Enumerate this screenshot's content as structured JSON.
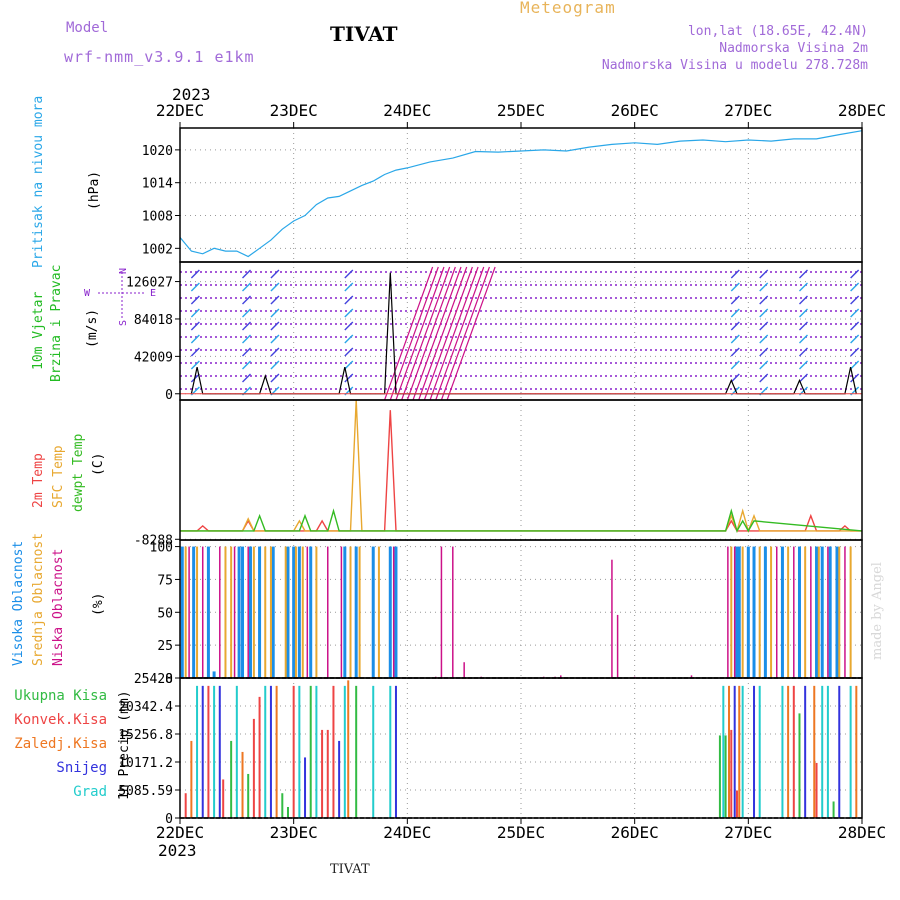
{
  "header": {
    "title": "TIVAT",
    "meteogram": "Meteogram",
    "model_label": "Model",
    "model_name": "wrf-nmm_v3.9.1 e1km",
    "lonlat": "lon,lat (18.65E, 42.4N)",
    "elevation": "Nadmorska Visina 2m",
    "model_elevation": "Nadmorska Visina u modelu 278.728m"
  },
  "footer": {
    "station": "TIVAT",
    "credit": "made by Angel"
  },
  "colors": {
    "pressure": "#2aa7e8",
    "wind_label": "#22bb22",
    "temp2m": "#ee4444",
    "sfc_temp": "#e8a830",
    "dewpt": "#33bb22",
    "high_cloud": "#1a8ee8",
    "mid_cloud": "#e8a830",
    "low_cloud": "#cc1188",
    "rain_total": "#33bb44",
    "rain_conv": "#ee4444",
    "rain_frz": "#ee7722",
    "snow": "#3333dd",
    "hail": "#22cccc",
    "wind_dots": "#8822cc",
    "wind_barb_a": "#2aa7e8",
    "wind_barb_b": "#cc1188"
  },
  "chart_data": [
    {
      "type": "line",
      "panel": "pressure",
      "title": "",
      "year": "2023",
      "x_ticks": [
        "22DEC",
        "23DEC",
        "24DEC",
        "25DEC",
        "26DEC",
        "27DEC",
        "28DEC"
      ],
      "ylabel": "Pritisak na nivou mora",
      "unit": "(hPa)",
      "y_ticks": [
        "1002",
        "1008",
        "1014",
        "1020"
      ],
      "ylim": [
        999.5,
        1024
      ],
      "grid": true,
      "series": [
        {
          "name": "Pritisak na nivou mora",
          "x": [
            0,
            0.1,
            0.2,
            0.3,
            0.4,
            0.5,
            0.6,
            0.7,
            0.8,
            0.9,
            1.0,
            1.1,
            1.2,
            1.3,
            1.4,
            1.5,
            1.6,
            1.7,
            1.8,
            1.9,
            2.0,
            2.2,
            2.4,
            2.6,
            2.8,
            3.0,
            3.2,
            3.4,
            3.6,
            3.8,
            4.0,
            4.2,
            4.4,
            4.6,
            4.8,
            5.0,
            5.2,
            5.4,
            5.6,
            5.8,
            6.0
          ],
          "values": [
            1004,
            1001.5,
            1001,
            1002,
            1001.5,
            1001.5,
            1000.5,
            1002,
            1003.5,
            1005.5,
            1007,
            1008,
            1010,
            1011.2,
            1011.5,
            1012.5,
            1013.5,
            1014.3,
            1015.5,
            1016.3,
            1016.7,
            1017.8,
            1018.5,
            1019.7,
            1019.6,
            1019.8,
            1020,
            1019.8,
            1020.5,
            1021,
            1021.3,
            1021,
            1021.6,
            1021.8,
            1021.5,
            1021.8,
            1021.6,
            1022,
            1022,
            1022.8,
            1023.5
          ]
        }
      ]
    },
    {
      "type": "line",
      "panel": "wind",
      "title": "",
      "ylabel": "10m Vjetar Brzina i Pravac",
      "unit": "(m/s)",
      "y_ticks": [
        "0",
        "42009",
        "84018",
        "126027"
      ],
      "ylim": [
        -7000,
        148000
      ],
      "grid": true,
      "compass": [
        "N",
        "W",
        "E",
        "S"
      ],
      "series": [
        {
          "name": "10m Vjetar Brzina",
          "x": [
            0.1,
            0.15,
            0.2,
            0.25,
            0.7,
            0.75,
            0.8,
            0.85,
            1.4,
            1.45,
            1.5,
            1.55,
            1.8,
            1.85,
            1.9,
            1.95,
            4.8,
            4.85,
            4.9,
            4.95,
            5.4,
            5.45,
            5.5,
            5.55,
            5.85,
            5.9,
            5.95
          ],
          "values": [
            0,
            30000,
            0,
            0,
            0,
            20000,
            0,
            0,
            0,
            30000,
            0,
            0,
            0,
            136000,
            0,
            0,
            0,
            15000,
            0,
            0,
            0,
            15000,
            0,
            0,
            0,
            30000,
            0
          ]
        }
      ]
    },
    {
      "type": "line",
      "panel": "temperature",
      "title": "",
      "ylabel": "2m Temp, SFC Temp, dewpt Temp",
      "unit": "(C)",
      "y_ticks": [
        "-8288"
      ],
      "ylim": [
        -9000,
        130000
      ],
      "grid": true,
      "series": [
        {
          "name": "2m Temp",
          "x": [
            0,
            0.15,
            0.2,
            0.25,
            0.55,
            0.6,
            0.65,
            0.7,
            1.2,
            1.25,
            1.3,
            1.35,
            1.8,
            1.85,
            1.9,
            1.95,
            4.8,
            4.85,
            4.9,
            4.95,
            5.5,
            5.55,
            5.6,
            5.8,
            5.85,
            5.9,
            6.0
          ],
          "values": [
            0,
            0,
            5000,
            0,
            0,
            10000,
            0,
            0,
            0,
            10000,
            0,
            0,
            0,
            120000,
            0,
            0,
            0,
            10000,
            0,
            0,
            0,
            15000,
            0,
            0,
            5000,
            0,
            0
          ]
        },
        {
          "name": "SFC Temp",
          "x": [
            0,
            0.55,
            0.6,
            0.65,
            1.0,
            1.05,
            1.1,
            1.5,
            1.55,
            1.6,
            4.8,
            4.85,
            4.9,
            4.95,
            5.0,
            5.05,
            5.1,
            6.0
          ],
          "values": [
            0,
            0,
            12000,
            0,
            0,
            10000,
            0,
            0,
            130000,
            0,
            0,
            15000,
            0,
            20000,
            0,
            15000,
            0,
            0
          ]
        },
        {
          "name": "dewpt Temp",
          "x": [
            0,
            0.65,
            0.7,
            0.75,
            1.05,
            1.1,
            1.15,
            1.2,
            1.3,
            1.35,
            1.4,
            1.45,
            4.8,
            4.85,
            4.9,
            4.95,
            5.0,
            5.05,
            6.0
          ],
          "values": [
            0,
            0,
            15000,
            0,
            0,
            15000,
            0,
            0,
            0,
            20000,
            0,
            0,
            0,
            20000,
            0,
            10000,
            0,
            10000,
            0
          ]
        }
      ]
    },
    {
      "type": "bar",
      "panel": "cloud",
      "title": "",
      "ylabel": "Visoka Oblacnost, Srednja Oblacnost, Niska Oblacnost",
      "unit": "(%)",
      "y_ticks": [
        "0",
        "25",
        "50",
        "75",
        "100"
      ],
      "ylim": [
        0,
        105
      ],
      "grid": true,
      "series": [
        {
          "name": "Visoka Oblacnost",
          "x": [
            0.02,
            0.12,
            0.25,
            0.3,
            0.52,
            0.55,
            0.62,
            0.7,
            0.82,
            0.95,
            1.0,
            1.05,
            1.15,
            1.45,
            1.55,
            1.7,
            1.85,
            1.9,
            4.9,
            4.92,
            5.0,
            5.05,
            5.15,
            5.3,
            5.45,
            5.6,
            5.65,
            5.72,
            5.78
          ],
          "values": [
            100,
            100,
            100,
            5,
            100,
            100,
            100,
            100,
            100,
            100,
            100,
            100,
            100,
            100,
            100,
            100,
            100,
            100,
            100,
            100,
            100,
            100,
            100,
            100,
            100,
            100,
            100,
            100,
            100
          ]
        },
        {
          "name": "Srednja Oblacnost",
          "x": [
            0.05,
            0.15,
            0.4,
            0.45,
            0.65,
            0.75,
            0.8,
            0.93,
            1.02,
            1.08,
            1.2,
            1.5,
            1.58,
            1.75,
            4.85,
            4.95,
            5.1,
            5.2,
            5.35,
            5.5,
            5.62,
            5.8,
            5.9
          ],
          "values": [
            100,
            100,
            100,
            100,
            100,
            100,
            100,
            100,
            100,
            100,
            100,
            100,
            100,
            100,
            100,
            100,
            100,
            100,
            100,
            100,
            100,
            100,
            100
          ]
        },
        {
          "name": "Niska Oblacnost",
          "x": [
            0.08,
            0.2,
            0.35,
            0.48,
            0.6,
            1.12,
            1.3,
            1.42,
            1.88,
            2.25,
            2.3,
            2.4,
            2.5,
            2.65,
            3.2,
            3.3,
            3.35,
            3.8,
            3.85,
            4.0,
            4.5,
            4.82,
            4.88,
            5.25,
            5.4,
            5.55,
            5.7,
            5.85
          ],
          "values": [
            100,
            100,
            100,
            100,
            100,
            100,
            100,
            100,
            100,
            1,
            100,
            100,
            12,
            1,
            1,
            1,
            2,
            90,
            48,
            1,
            2,
            100,
            100,
            100,
            100,
            100,
            100,
            100
          ]
        }
      ]
    },
    {
      "type": "bar",
      "panel": "precipitation",
      "title": "",
      "ylabel": "1h Precip (mm)",
      "y_ticks": [
        "0",
        "5085.59",
        "10171.2",
        "15256.8",
        "20342.4",
        "25428"
      ],
      "ylim": [
        0,
        25428
      ],
      "grid": true,
      "legend": [
        "Ukupna Kisa",
        "Konvek.Kisa",
        "Zaledj.Kisa",
        "Snijeg",
        "Grad"
      ],
      "series": [
        {
          "name": "Ukupna Kisa",
          "x": [
            0.45,
            0.6,
            0.9,
            0.95,
            1.15,
            1.55,
            4.75,
            4.8,
            5.45,
            5.75
          ],
          "values": [
            14000,
            8000,
            4500,
            2000,
            24000,
            24000,
            15000,
            15000,
            19000,
            3000
          ]
        },
        {
          "name": "Konvek.Kisa",
          "x": [
            0.05,
            0.25,
            0.38,
            0.65,
            0.7,
            1.0,
            1.25,
            1.3,
            1.35,
            4.85,
            4.9,
            5.4,
            5.6
          ],
          "values": [
            4500,
            24000,
            7000,
            18000,
            22000,
            24000,
            16000,
            16000,
            24000,
            16000,
            5000,
            24000,
            10000
          ]
        },
        {
          "name": "Zaledj.Kisa",
          "x": [
            0.1,
            0.55,
            0.85,
            1.48,
            4.83,
            4.92,
            5.35,
            5.58,
            5.95
          ],
          "values": [
            14000,
            12000,
            24000,
            25000,
            24000,
            24000,
            24000,
            24000,
            24000
          ]
        },
        {
          "name": "Snijeg",
          "x": [
            0.2,
            0.35,
            0.8,
            1.1,
            1.4,
            1.9,
            4.88,
            5.05,
            5.5,
            5.8
          ],
          "values": [
            24000,
            24000,
            24000,
            11000,
            14000,
            24000,
            24000,
            24000,
            24000,
            24000
          ]
        },
        {
          "name": "Grad",
          "x": [
            0.15,
            0.3,
            0.5,
            0.75,
            1.05,
            1.2,
            1.45,
            1.7,
            1.85,
            4.78,
            4.95,
            5.1,
            5.3,
            5.65,
            5.7,
            5.9
          ],
          "values": [
            24000,
            24000,
            24000,
            24000,
            24000,
            24000,
            24000,
            24000,
            24000,
            24000,
            24000,
            24000,
            24000,
            24000,
            24000,
            24000
          ]
        }
      ]
    }
  ]
}
